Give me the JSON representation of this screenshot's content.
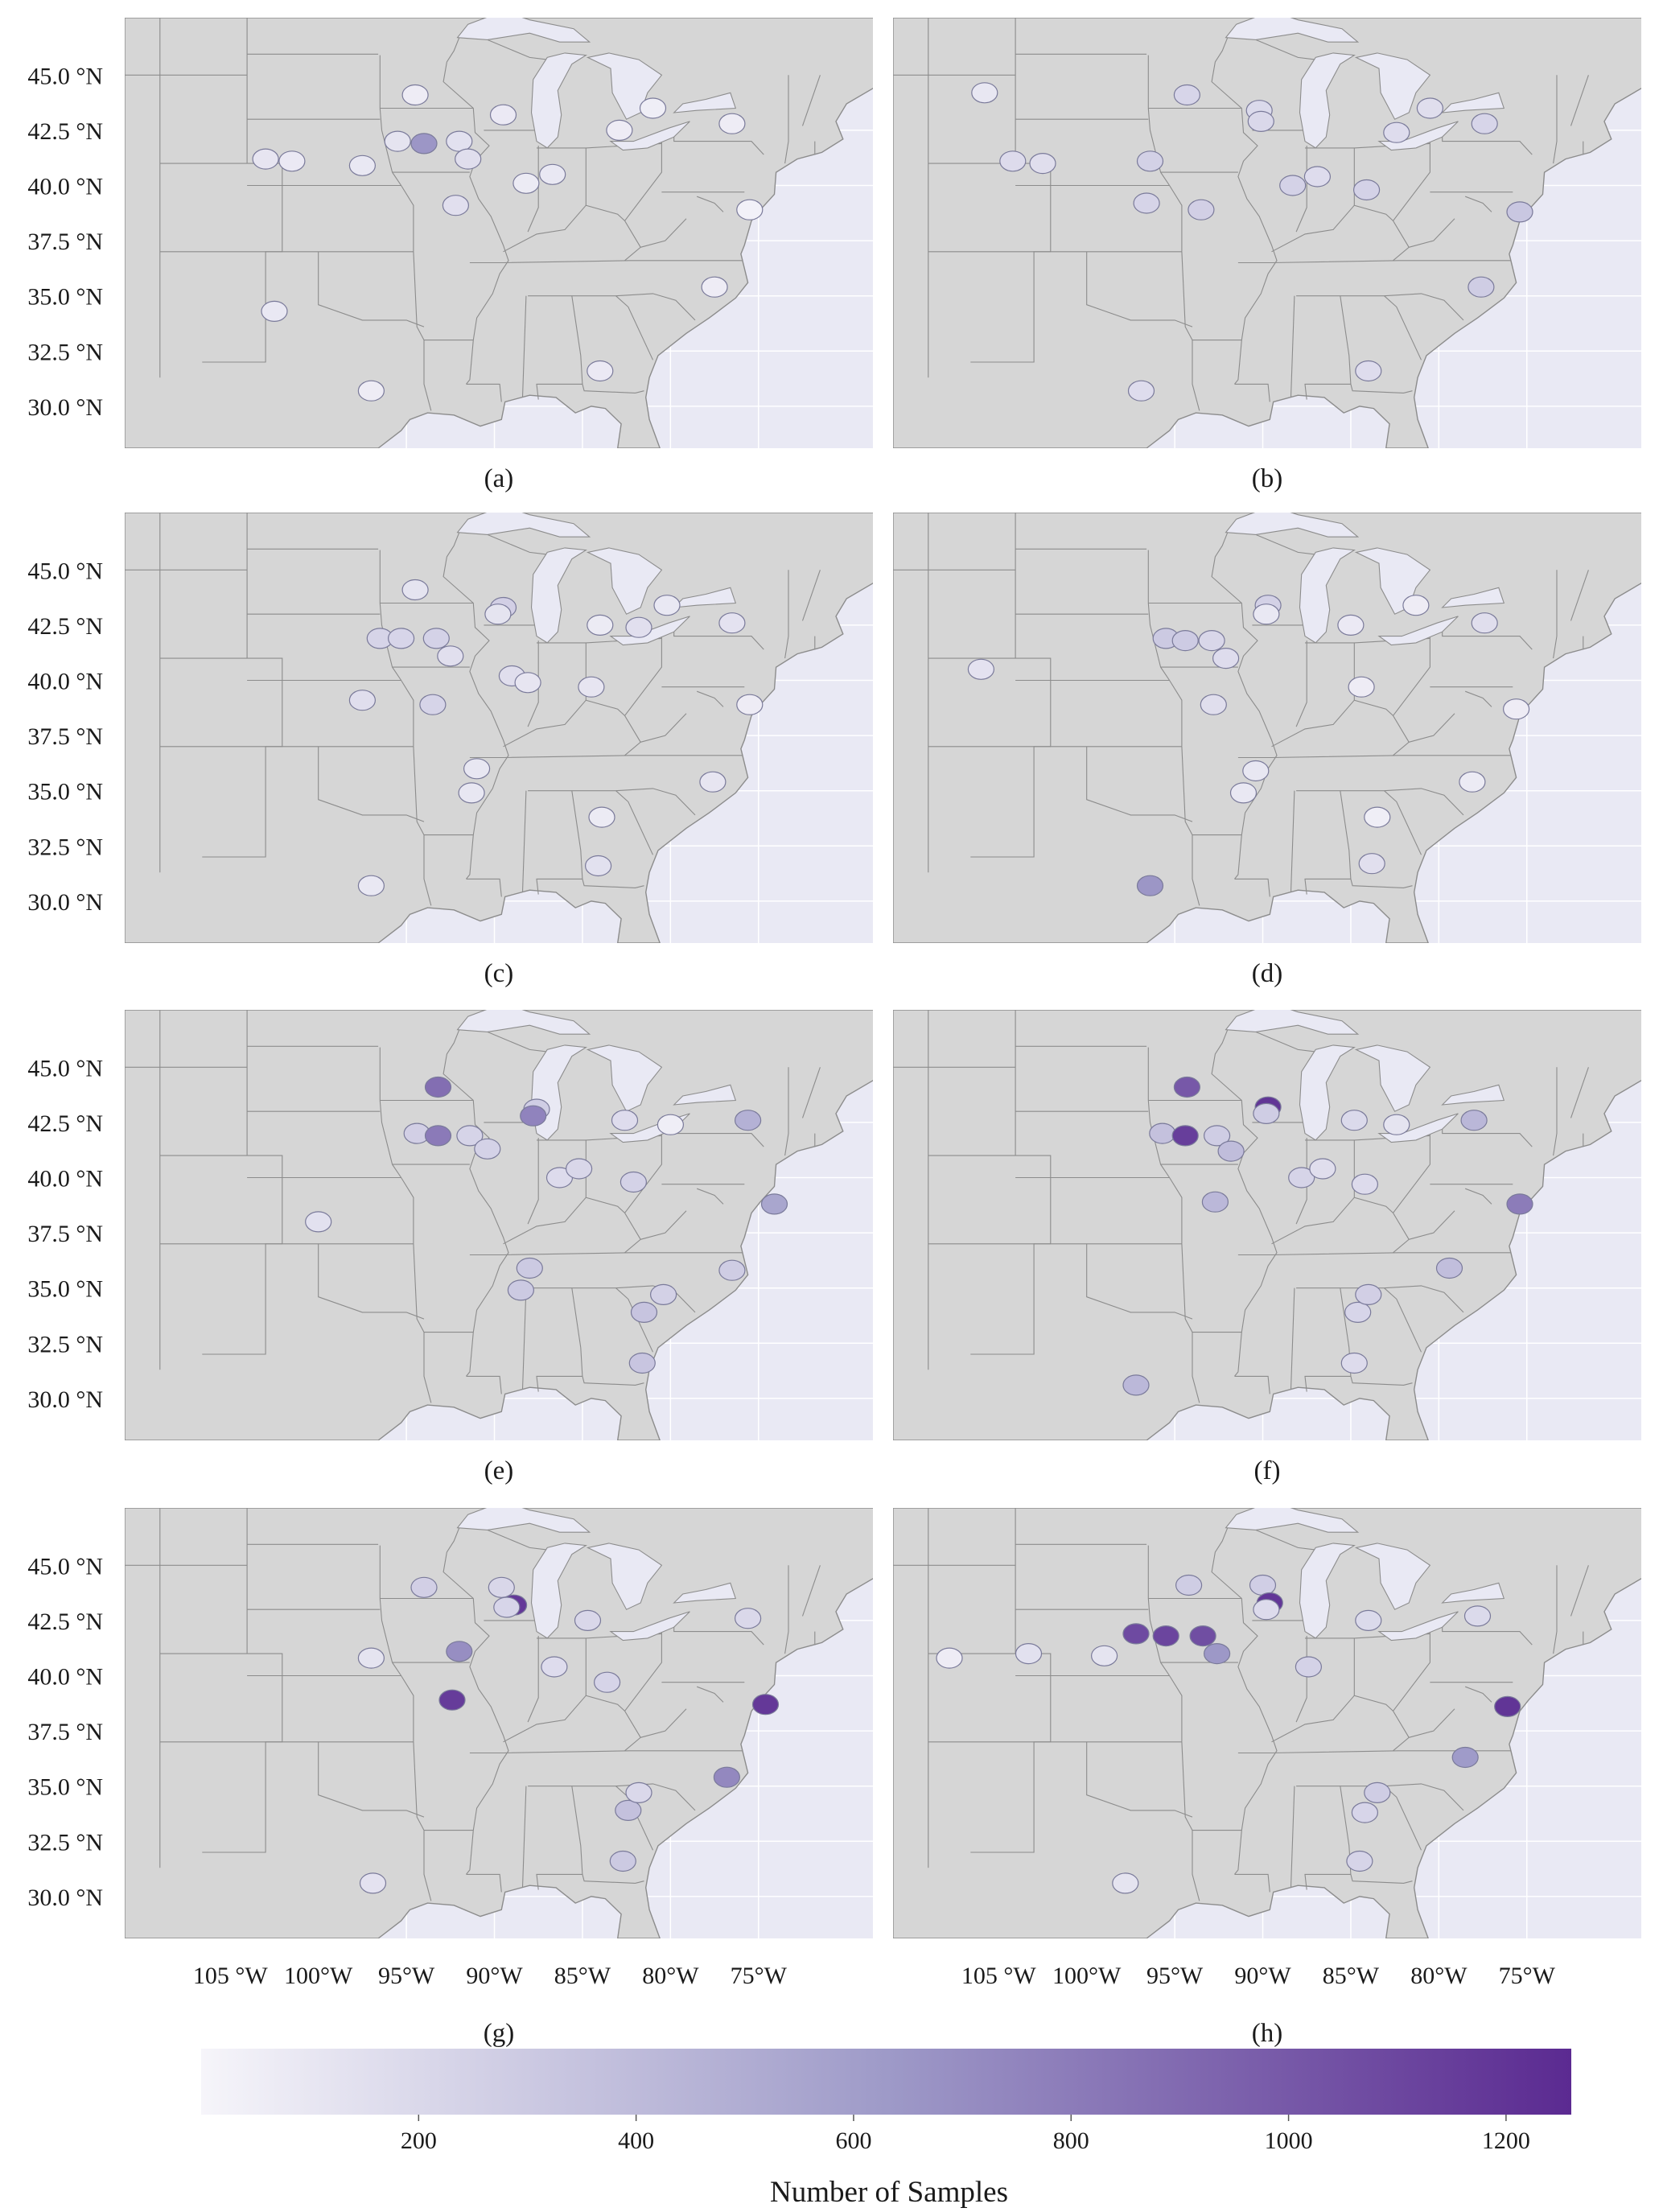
{
  "colors": {
    "land": "#d6d6d6",
    "ocean": "#e9e9f4",
    "border": "#8c8c8c",
    "gridline": "#ffffff",
    "scale_low": "#f6f5fa",
    "scale_mid": "#9e9ac8",
    "scale_high": "#5b2a91"
  },
  "lat_ticks": [
    "45.0 °N",
    "42.5 °N",
    "40.0 °N",
    "37.5 °N",
    "35.0 °N",
    "32.5 °N",
    "30.0 °N"
  ],
  "lon_ticks": [
    "105 °W",
    "100°W",
    "95°W",
    "90°W",
    "85°W",
    "80°W",
    "75°W"
  ],
  "colorbar": {
    "label": "Number of Samples",
    "min": 0,
    "max": 1260,
    "ticks": [
      "200",
      "400",
      "600",
      "800",
      "1000",
      "1200"
    ],
    "tick_values": [
      200,
      400,
      600,
      800,
      1000,
      1200
    ]
  },
  "panels": [
    {
      "label": "(a)",
      "sites": [
        {
          "lon": -94.5,
          "lat": 44.1,
          "n": 60
        },
        {
          "lon": -95.5,
          "lat": 42.0,
          "n": 120
        },
        {
          "lon": -94.0,
          "lat": 41.9,
          "n": 650
        },
        {
          "lon": -92.0,
          "lat": 42.0,
          "n": 140
        },
        {
          "lon": -91.5,
          "lat": 41.2,
          "n": 160
        },
        {
          "lon": -89.5,
          "lat": 43.2,
          "n": 80
        },
        {
          "lon": -97.5,
          "lat": 40.9,
          "n": 90
        },
        {
          "lon": -103.0,
          "lat": 41.2,
          "n": 110
        },
        {
          "lon": -101.5,
          "lat": 41.1,
          "n": 80
        },
        {
          "lon": -92.2,
          "lat": 39.1,
          "n": 150
        },
        {
          "lon": -88.2,
          "lat": 40.1,
          "n": 70
        },
        {
          "lon": -86.7,
          "lat": 40.5,
          "n": 90
        },
        {
          "lon": -82.9,
          "lat": 42.5,
          "n": 60
        },
        {
          "lon": -81.0,
          "lat": 43.5,
          "n": 50
        },
        {
          "lon": -76.5,
          "lat": 42.8,
          "n": 60
        },
        {
          "lon": -75.5,
          "lat": 38.9,
          "n": 30
        },
        {
          "lon": -77.5,
          "lat": 35.4,
          "n": 60
        },
        {
          "lon": -84.0,
          "lat": 31.6,
          "n": 80
        },
        {
          "lon": -97.0,
          "lat": 30.7,
          "n": 60
        },
        {
          "lon": -102.5,
          "lat": 34.3,
          "n": 90
        }
      ]
    },
    {
      "label": "(b)",
      "sites": [
        {
          "lon": -105.8,
          "lat": 44.2,
          "n": 100
        },
        {
          "lon": -104.2,
          "lat": 41.1,
          "n": 180
        },
        {
          "lon": -102.5,
          "lat": 41.0,
          "n": 160
        },
        {
          "lon": -96.4,
          "lat": 41.1,
          "n": 250
        },
        {
          "lon": -96.6,
          "lat": 39.2,
          "n": 230
        },
        {
          "lon": -93.5,
          "lat": 38.9,
          "n": 260
        },
        {
          "lon": -94.3,
          "lat": 44.1,
          "n": 220
        },
        {
          "lon": -90.2,
          "lat": 43.4,
          "n": 190
        },
        {
          "lon": -90.1,
          "lat": 42.9,
          "n": 200
        },
        {
          "lon": -88.3,
          "lat": 40.0,
          "n": 240
        },
        {
          "lon": -86.9,
          "lat": 40.4,
          "n": 170
        },
        {
          "lon": -84.1,
          "lat": 39.8,
          "n": 240
        },
        {
          "lon": -82.4,
          "lat": 42.4,
          "n": 170
        },
        {
          "lon": -80.5,
          "lat": 43.5,
          "n": 160
        },
        {
          "lon": -77.4,
          "lat": 42.8,
          "n": 220
        },
        {
          "lon": -75.4,
          "lat": 38.8,
          "n": 320
        },
        {
          "lon": -77.6,
          "lat": 35.4,
          "n": 280
        },
        {
          "lon": -84.0,
          "lat": 31.6,
          "n": 170
        },
        {
          "lon": -96.9,
          "lat": 30.7,
          "n": 170
        }
      ]
    },
    {
      "label": "(c)",
      "sites": [
        {
          "lon": -94.5,
          "lat": 44.1,
          "n": 120
        },
        {
          "lon": -96.5,
          "lat": 41.9,
          "n": 230
        },
        {
          "lon": -95.3,
          "lat": 41.9,
          "n": 220
        },
        {
          "lon": -93.3,
          "lat": 41.9,
          "n": 240
        },
        {
          "lon": -92.5,
          "lat": 41.1,
          "n": 150
        },
        {
          "lon": -89.5,
          "lat": 43.3,
          "n": 260
        },
        {
          "lon": -89.8,
          "lat": 43.0,
          "n": 120
        },
        {
          "lon": -97.5,
          "lat": 39.1,
          "n": 160
        },
        {
          "lon": -93.5,
          "lat": 38.9,
          "n": 230
        },
        {
          "lon": -89.0,
          "lat": 40.2,
          "n": 160
        },
        {
          "lon": -88.1,
          "lat": 39.9,
          "n": 110
        },
        {
          "lon": -84.5,
          "lat": 39.7,
          "n": 110
        },
        {
          "lon": -84.0,
          "lat": 42.5,
          "n": 70
        },
        {
          "lon": -81.8,
          "lat": 42.4,
          "n": 150
        },
        {
          "lon": -80.2,
          "lat": 43.4,
          "n": 90
        },
        {
          "lon": -76.5,
          "lat": 42.6,
          "n": 130
        },
        {
          "lon": -75.5,
          "lat": 38.9,
          "n": 60
        },
        {
          "lon": -77.6,
          "lat": 35.4,
          "n": 110
        },
        {
          "lon": -83.9,
          "lat": 33.8,
          "n": 70
        },
        {
          "lon": -84.1,
          "lat": 31.6,
          "n": 140
        },
        {
          "lon": -97.0,
          "lat": 30.7,
          "n": 90
        },
        {
          "lon": -91.0,
          "lat": 36.0,
          "n": 100
        },
        {
          "lon": -91.3,
          "lat": 34.9,
          "n": 100
        }
      ]
    },
    {
      "label": "(d)",
      "sites": [
        {
          "lon": -106.0,
          "lat": 40.5,
          "n": 130
        },
        {
          "lon": -95.5,
          "lat": 41.9,
          "n": 300
        },
        {
          "lon": -94.4,
          "lat": 41.8,
          "n": 290
        },
        {
          "lon": -92.9,
          "lat": 41.8,
          "n": 210
        },
        {
          "lon": -92.1,
          "lat": 41.0,
          "n": 170
        },
        {
          "lon": -89.7,
          "lat": 43.4,
          "n": 250
        },
        {
          "lon": -89.8,
          "lat": 43.0,
          "n": 90
        },
        {
          "lon": -92.8,
          "lat": 38.9,
          "n": 160
        },
        {
          "lon": -90.4,
          "lat": 35.9,
          "n": 100
        },
        {
          "lon": -91.1,
          "lat": 34.9,
          "n": 90
        },
        {
          "lon": -85.0,
          "lat": 42.5,
          "n": 80
        },
        {
          "lon": -81.3,
          "lat": 43.4,
          "n": 60
        },
        {
          "lon": -77.4,
          "lat": 42.6,
          "n": 160
        },
        {
          "lon": -84.4,
          "lat": 39.7,
          "n": 60
        },
        {
          "lon": -75.6,
          "lat": 38.7,
          "n": 60
        },
        {
          "lon": -78.1,
          "lat": 35.4,
          "n": 70
        },
        {
          "lon": -83.5,
          "lat": 33.8,
          "n": 50
        },
        {
          "lon": -83.8,
          "lat": 31.7,
          "n": 150
        },
        {
          "lon": -96.4,
          "lat": 30.7,
          "n": 650
        }
      ]
    },
    {
      "label": "(e)",
      "sites": [
        {
          "lon": -93.2,
          "lat": 44.1,
          "n": 880
        },
        {
          "lon": -94.4,
          "lat": 42.0,
          "n": 260
        },
        {
          "lon": -93.2,
          "lat": 41.9,
          "n": 810
        },
        {
          "lon": -91.4,
          "lat": 41.9,
          "n": 230
        },
        {
          "lon": -90.4,
          "lat": 41.3,
          "n": 240
        },
        {
          "lon": -87.6,
          "lat": 43.1,
          "n": 280
        },
        {
          "lon": -87.8,
          "lat": 42.8,
          "n": 760
        },
        {
          "lon": -100.0,
          "lat": 38.0,
          "n": 140
        },
        {
          "lon": -86.3,
          "lat": 40.0,
          "n": 180
        },
        {
          "lon": -85.2,
          "lat": 40.4,
          "n": 210
        },
        {
          "lon": -82.1,
          "lat": 39.8,
          "n": 240
        },
        {
          "lon": -82.6,
          "lat": 42.6,
          "n": 170
        },
        {
          "lon": -80.0,
          "lat": 42.4,
          "n": 50
        },
        {
          "lon": -75.6,
          "lat": 42.6,
          "n": 470
        },
        {
          "lon": -74.1,
          "lat": 38.8,
          "n": 550
        },
        {
          "lon": -76.5,
          "lat": 35.8,
          "n": 280
        },
        {
          "lon": -81.5,
          "lat": 33.9,
          "n": 340
        },
        {
          "lon": -80.4,
          "lat": 34.7,
          "n": 250
        },
        {
          "lon": -81.6,
          "lat": 31.6,
          "n": 330
        },
        {
          "lon": -88.0,
          "lat": 35.9,
          "n": 300
        },
        {
          "lon": -88.5,
          "lat": 34.9,
          "n": 300
        }
      ]
    },
    {
      "label": "(f)",
      "sites": [
        {
          "lon": -94.3,
          "lat": 44.1,
          "n": 1000
        },
        {
          "lon": -95.7,
          "lat": 42.0,
          "n": 360
        },
        {
          "lon": -94.4,
          "lat": 41.9,
          "n": 1150
        },
        {
          "lon": -92.6,
          "lat": 41.9,
          "n": 280
        },
        {
          "lon": -91.8,
          "lat": 41.2,
          "n": 390
        },
        {
          "lon": -89.7,
          "lat": 43.2,
          "n": 1200
        },
        {
          "lon": -89.8,
          "lat": 42.9,
          "n": 280
        },
        {
          "lon": -92.7,
          "lat": 38.9,
          "n": 420
        },
        {
          "lon": -87.8,
          "lat": 40.0,
          "n": 230
        },
        {
          "lon": -86.6,
          "lat": 40.4,
          "n": 160
        },
        {
          "lon": -84.2,
          "lat": 39.7,
          "n": 180
        },
        {
          "lon": -84.8,
          "lat": 42.6,
          "n": 190
        },
        {
          "lon": -82.4,
          "lat": 42.4,
          "n": 120
        },
        {
          "lon": -78.0,
          "lat": 42.6,
          "n": 430
        },
        {
          "lon": -75.4,
          "lat": 38.8,
          "n": 800
        },
        {
          "lon": -79.4,
          "lat": 35.9,
          "n": 380
        },
        {
          "lon": -84.6,
          "lat": 33.9,
          "n": 220
        },
        {
          "lon": -84.0,
          "lat": 34.7,
          "n": 260
        },
        {
          "lon": -84.8,
          "lat": 31.6,
          "n": 180
        },
        {
          "lon": -97.2,
          "lat": 30.6,
          "n": 420
        }
      ]
    },
    {
      "label": "(g)",
      "sites": [
        {
          "lon": -94.0,
          "lat": 44.0,
          "n": 260
        },
        {
          "lon": -89.6,
          "lat": 44.0,
          "n": 210
        },
        {
          "lon": -88.9,
          "lat": 43.2,
          "n": 1180
        },
        {
          "lon": -89.3,
          "lat": 43.1,
          "n": 220
        },
        {
          "lon": -92.0,
          "lat": 41.1,
          "n": 700
        },
        {
          "lon": -97.0,
          "lat": 40.8,
          "n": 120
        },
        {
          "lon": -92.4,
          "lat": 38.9,
          "n": 1160
        },
        {
          "lon": -86.6,
          "lat": 40.4,
          "n": 170
        },
        {
          "lon": -83.6,
          "lat": 39.7,
          "n": 230
        },
        {
          "lon": -84.7,
          "lat": 42.5,
          "n": 210
        },
        {
          "lon": -75.6,
          "lat": 42.6,
          "n": 200
        },
        {
          "lon": -74.6,
          "lat": 38.7,
          "n": 1180
        },
        {
          "lon": -76.8,
          "lat": 35.4,
          "n": 730
        },
        {
          "lon": -82.4,
          "lat": 33.9,
          "n": 360
        },
        {
          "lon": -81.8,
          "lat": 34.7,
          "n": 200
        },
        {
          "lon": -82.7,
          "lat": 31.6,
          "n": 300
        },
        {
          "lon": -96.9,
          "lat": 30.6,
          "n": 130
        }
      ]
    },
    {
      "label": "(h)",
      "sites": [
        {
          "lon": -107.8,
          "lat": 40.8,
          "n": 60
        },
        {
          "lon": -103.3,
          "lat": 41.0,
          "n": 140
        },
        {
          "lon": -99.0,
          "lat": 40.9,
          "n": 120
        },
        {
          "lon": -97.2,
          "lat": 41.9,
          "n": 1080
        },
        {
          "lon": -95.5,
          "lat": 41.8,
          "n": 1110
        },
        {
          "lon": -93.4,
          "lat": 41.8,
          "n": 1060
        },
        {
          "lon": -92.6,
          "lat": 41.0,
          "n": 640
        },
        {
          "lon": -94.2,
          "lat": 44.1,
          "n": 280
        },
        {
          "lon": -90.0,
          "lat": 44.1,
          "n": 270
        },
        {
          "lon": -89.6,
          "lat": 43.3,
          "n": 1190
        },
        {
          "lon": -89.8,
          "lat": 43.0,
          "n": 180
        },
        {
          "lon": -87.4,
          "lat": 40.4,
          "n": 240
        },
        {
          "lon": -84.0,
          "lat": 42.5,
          "n": 190
        },
        {
          "lon": -77.8,
          "lat": 42.7,
          "n": 190
        },
        {
          "lon": -76.1,
          "lat": 38.6,
          "n": 1200
        },
        {
          "lon": -78.5,
          "lat": 36.3,
          "n": 620
        },
        {
          "lon": -83.5,
          "lat": 34.7,
          "n": 280
        },
        {
          "lon": -84.2,
          "lat": 33.8,
          "n": 220
        },
        {
          "lon": -84.5,
          "lat": 31.6,
          "n": 230
        },
        {
          "lon": -97.8,
          "lat": 30.6,
          "n": 120
        }
      ]
    }
  ]
}
